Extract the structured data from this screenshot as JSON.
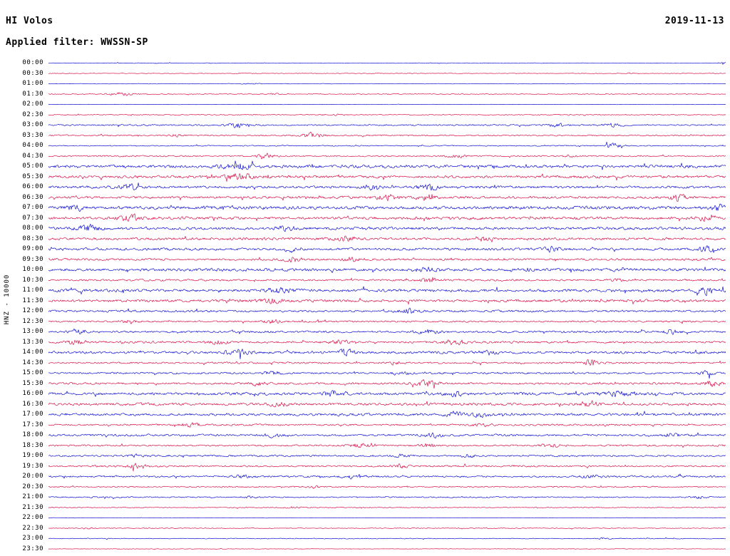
{
  "header": {
    "station": "HI Volos",
    "date": "2019-11-13",
    "filter_label": "Applied filter: WWSSN-SP"
  },
  "colors": {
    "blue": "#0000d0",
    "red": "#d6003c",
    "background": "#ffffff",
    "text": "#000000"
  },
  "chart_data": {
    "type": "line",
    "subtype": "seismogram-helicorder",
    "title": "HI Volos",
    "date": "2019-11-13",
    "filter": "WWSSN-SP",
    "scale_label": "HNZ - 10000",
    "row_duration_minutes": 30,
    "start_time": "00:00",
    "end_time": "23:59",
    "legend": "none",
    "grid": false,
    "trace_color_alternation": [
      "blue",
      "red"
    ],
    "rows": [
      {
        "label": "00:00",
        "color": "blue",
        "amp": 0.5,
        "bursts": [
          [
            0.995,
            9,
            0.003
          ]
        ]
      },
      {
        "label": "00:30",
        "color": "red",
        "amp": 0.5,
        "bursts": [
          [
            0.285,
            1.5,
            0.01
          ],
          [
            0.86,
            2.5,
            0.004
          ]
        ]
      },
      {
        "label": "01:00",
        "color": "blue",
        "amp": 0.5,
        "bursts": [
          [
            0.3,
            1.5,
            0.01
          ]
        ]
      },
      {
        "label": "01:30",
        "color": "red",
        "amp": 0.7,
        "bursts": [
          [
            0.107,
            3.5,
            0.012
          ],
          [
            0.33,
            1.5,
            0.01
          ]
        ]
      },
      {
        "label": "02:00",
        "color": "blue",
        "amp": 0.35,
        "bursts": []
      },
      {
        "label": "02:30",
        "color": "red",
        "amp": 0.8,
        "bursts": [
          [
            0.42,
            1.5,
            0.01
          ]
        ]
      },
      {
        "label": "03:00",
        "color": "blue",
        "amp": 1.2,
        "bursts": [
          [
            0.28,
            3.5,
            0.012
          ],
          [
            0.75,
            2.5,
            0.01
          ],
          [
            0.83,
            2.5,
            0.012
          ]
        ]
      },
      {
        "label": "03:30",
        "color": "red",
        "amp": 1.2,
        "bursts": [
          [
            0.39,
            4,
            0.01
          ],
          [
            0.185,
            1.8,
            0.008
          ]
        ]
      },
      {
        "label": "04:00",
        "color": "blue",
        "amp": 0.9,
        "bursts": [
          [
            0.835,
            3.5,
            0.008
          ]
        ]
      },
      {
        "label": "04:30",
        "color": "red",
        "amp": 1.2,
        "bursts": [
          [
            0.322,
            3,
            0.01
          ],
          [
            0.6,
            1.8,
            0.01
          ],
          [
            0.77,
            1.6,
            0.008
          ]
        ]
      },
      {
        "label": "05:00",
        "color": "blue",
        "amp": 2.6,
        "bursts": [
          [
            0.28,
            1.5,
            0.02
          ]
        ]
      },
      {
        "label": "05:30",
        "color": "red",
        "amp": 2.4,
        "bursts": [
          [
            0.285,
            2,
            0.015
          ]
        ]
      },
      {
        "label": "06:00",
        "color": "blue",
        "amp": 2.2,
        "bursts": [
          [
            0.12,
            1.8,
            0.01
          ],
          [
            0.48,
            2,
            0.01
          ],
          [
            0.56,
            1.8,
            0.01
          ]
        ]
      },
      {
        "label": "06:30",
        "color": "red",
        "amp": 2.2,
        "bursts": [
          [
            0.5,
            1.8,
            0.012
          ],
          [
            0.56,
            2,
            0.01
          ],
          [
            0.93,
            2,
            0.008
          ]
        ]
      },
      {
        "label": "07:00",
        "color": "blue",
        "amp": 2.8,
        "bursts": [
          [
            0.04,
            2,
            0.01
          ],
          [
            0.99,
            2,
            0.006
          ]
        ]
      },
      {
        "label": "07:30",
        "color": "red",
        "amp": 2.4,
        "bursts": [
          [
            0.12,
            1.8,
            0.01
          ],
          [
            0.97,
            2,
            0.008
          ]
        ]
      },
      {
        "label": "08:00",
        "color": "blue",
        "amp": 2.4,
        "bursts": [
          [
            0.06,
            2.2,
            0.012
          ],
          [
            0.35,
            1.6,
            0.01
          ]
        ]
      },
      {
        "label": "08:30",
        "color": "red",
        "amp": 2.2,
        "bursts": [
          [
            0.44,
            2,
            0.012
          ],
          [
            0.64,
            1.6,
            0.01
          ]
        ]
      },
      {
        "label": "09:00",
        "color": "blue",
        "amp": 2.2,
        "bursts": [
          [
            0.36,
            2,
            0.01
          ],
          [
            0.74,
            1.6,
            0.01
          ],
          [
            0.97,
            1.8,
            0.008
          ]
        ]
      },
      {
        "label": "09:30",
        "color": "red",
        "amp": 1.8,
        "bursts": [
          [
            0.36,
            2,
            0.01
          ],
          [
            0.45,
            1.6,
            0.01
          ]
        ]
      },
      {
        "label": "10:00",
        "color": "blue",
        "amp": 2.6,
        "bursts": [
          [
            0.56,
            1.5,
            0.015
          ]
        ]
      },
      {
        "label": "10:30",
        "color": "red",
        "amp": 1.6,
        "bursts": [
          [
            0.56,
            2,
            0.01
          ],
          [
            0.84,
            1.6,
            0.008
          ]
        ]
      },
      {
        "label": "11:00",
        "color": "blue",
        "amp": 2.6,
        "bursts": [
          [
            0.34,
            1.6,
            0.012
          ],
          [
            0.97,
            1.8,
            0.01
          ]
        ]
      },
      {
        "label": "11:30",
        "color": "red",
        "amp": 2.4,
        "bursts": [
          [
            0.33,
            1.6,
            0.01
          ]
        ]
      },
      {
        "label": "12:00",
        "color": "blue",
        "amp": 1.8,
        "bursts": [
          [
            0.53,
            2.2,
            0.01
          ]
        ]
      },
      {
        "label": "12:30",
        "color": "red",
        "amp": 1.5,
        "bursts": [
          [
            0.12,
            2,
            0.01
          ],
          [
            0.33,
            2,
            0.01
          ]
        ]
      },
      {
        "label": "13:00",
        "color": "blue",
        "amp": 1.8,
        "bursts": [
          [
            0.045,
            2.2,
            0.01
          ],
          [
            0.56,
            2.5,
            0.012
          ],
          [
            0.92,
            2,
            0.01
          ]
        ]
      },
      {
        "label": "13:30",
        "color": "red",
        "amp": 1.8,
        "bursts": [
          [
            0.04,
            2,
            0.01
          ],
          [
            0.25,
            1.8,
            0.01
          ],
          [
            0.43,
            1.8,
            0.01
          ],
          [
            0.6,
            2.2,
            0.012
          ]
        ]
      },
      {
        "label": "14:00",
        "color": "blue",
        "amp": 2.2,
        "bursts": [
          [
            0.28,
            2.2,
            0.012
          ],
          [
            0.44,
            1.8,
            0.01
          ],
          [
            0.65,
            1.8,
            0.01
          ]
        ]
      },
      {
        "label": "14:30",
        "color": "red",
        "amp": 1.5,
        "bursts": [
          [
            0.8,
            4.5,
            0.006
          ],
          [
            0.51,
            1.8,
            0.01
          ]
        ]
      },
      {
        "label": "15:00",
        "color": "blue",
        "amp": 1.6,
        "bursts": [
          [
            0.33,
            2.2,
            0.01
          ],
          [
            0.52,
            1.8,
            0.01
          ],
          [
            0.97,
            2.5,
            0.008
          ]
        ]
      },
      {
        "label": "15:30",
        "color": "red",
        "amp": 1.8,
        "bursts": [
          [
            0.56,
            2.8,
            0.012
          ],
          [
            0.98,
            2.5,
            0.008
          ],
          [
            0.31,
            1.6,
            0.01
          ]
        ]
      },
      {
        "label": "16:00",
        "color": "blue",
        "amp": 2.4,
        "bursts": [
          [
            0.42,
            2,
            0.01
          ],
          [
            0.6,
            1.8,
            0.01
          ],
          [
            0.84,
            2.2,
            0.01
          ]
        ]
      },
      {
        "label": "16:30",
        "color": "red",
        "amp": 2.2,
        "bursts": [
          [
            0.34,
            1.8,
            0.01
          ],
          [
            0.8,
            2,
            0.01
          ]
        ]
      },
      {
        "label": "17:00",
        "color": "blue",
        "amp": 2.2,
        "bursts": [
          [
            0.6,
            1.8,
            0.01
          ],
          [
            0.64,
            1.8,
            0.01
          ]
        ]
      },
      {
        "label": "17:30",
        "color": "red",
        "amp": 1.5,
        "bursts": [
          [
            0.21,
            2.2,
            0.01
          ],
          [
            0.64,
            2,
            0.01
          ]
        ]
      },
      {
        "label": "18:00",
        "color": "blue",
        "amp": 1.8,
        "bursts": [
          [
            0.33,
            1.8,
            0.01
          ],
          [
            0.57,
            1.8,
            0.01
          ],
          [
            0.92,
            1.8,
            0.01
          ]
        ]
      },
      {
        "label": "18:30",
        "color": "red",
        "amp": 1.5,
        "bursts": [
          [
            0.46,
            2.2,
            0.01
          ],
          [
            0.56,
            1.8,
            0.01
          ],
          [
            0.74,
            2,
            0.01
          ]
        ]
      },
      {
        "label": "19:00",
        "color": "blue",
        "amp": 1.5,
        "bursts": [
          [
            0.13,
            1.8,
            0.01
          ],
          [
            0.52,
            1.8,
            0.01
          ],
          [
            0.62,
            1.8,
            0.01
          ]
        ]
      },
      {
        "label": "19:30",
        "color": "red",
        "amp": 1.5,
        "bursts": [
          [
            0.13,
            2.2,
            0.01
          ],
          [
            0.52,
            1.8,
            0.01
          ]
        ]
      },
      {
        "label": "20:00",
        "color": "blue",
        "amp": 1.6,
        "bursts": [
          [
            0.29,
            2.5,
            0.01
          ],
          [
            0.45,
            2.2,
            0.01
          ],
          [
            0.8,
            1.8,
            0.01
          ]
        ]
      },
      {
        "label": "20:30",
        "color": "red",
        "amp": 1.1,
        "bursts": [
          [
            0.39,
            1.8,
            0.008
          ]
        ]
      },
      {
        "label": "21:00",
        "color": "blue",
        "amp": 1.1,
        "bursts": [
          [
            0.3,
            1.6,
            0.008
          ],
          [
            0.96,
            1.8,
            0.008
          ]
        ]
      },
      {
        "label": "21:30",
        "color": "red",
        "amp": 0.8,
        "bursts": [
          [
            0.36,
            1.6,
            0.008
          ]
        ]
      },
      {
        "label": "22:00",
        "color": "blue",
        "amp": 0.35,
        "bursts": []
      },
      {
        "label": "22:30",
        "color": "red",
        "amp": 0.7,
        "bursts": [
          [
            0.06,
            1.5,
            0.008
          ]
        ]
      },
      {
        "label": "23:00",
        "color": "blue",
        "amp": 0.7,
        "bursts": [
          [
            0.82,
            1.6,
            0.008
          ]
        ]
      },
      {
        "label": "23:30",
        "color": "red",
        "amp": 0.4,
        "bursts": []
      }
    ]
  }
}
